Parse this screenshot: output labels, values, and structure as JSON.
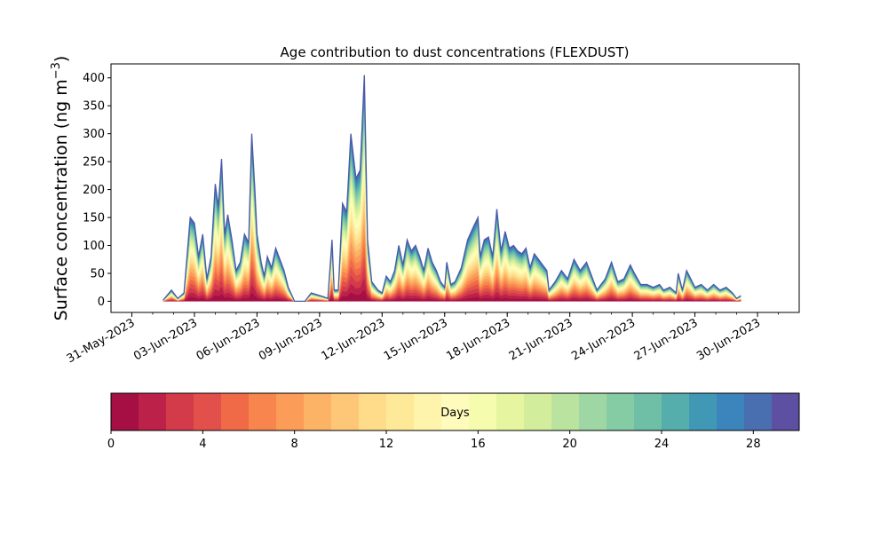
{
  "chart_data": {
    "type": "area",
    "title": "Age contribution to dust concentrations (FLEXDUST)",
    "ylabel_main": "Surface concentration (ng m",
    "ylabel_sup": "−3",
    "ylabel_close": ")",
    "xlabel": "",
    "ylim": [
      -20,
      425
    ],
    "x_axis": {
      "start_date": "2023-05-30",
      "end_date": "2023-07-02",
      "tick_labels": [
        "31-May-2023",
        "03-Jun-2023",
        "06-Jun-2023",
        "09-Jun-2023",
        "12-Jun-2023",
        "15-Jun-2023",
        "18-Jun-2023",
        "21-Jun-2023",
        "24-Jun-2023",
        "27-Jun-2023",
        "30-Jun-2023"
      ],
      "tick_days": [
        1,
        4,
        7,
        10,
        13,
        16,
        19,
        22,
        25,
        28,
        31
      ]
    },
    "y_ticks": [
      0,
      50,
      100,
      150,
      200,
      250,
      300,
      350,
      400
    ],
    "total_series": {
      "name": "total",
      "points": [
        [
          2.5,
          2
        ],
        [
          2.9,
          20
        ],
        [
          3.2,
          5
        ],
        [
          3.5,
          15
        ],
        [
          3.8,
          150
        ],
        [
          4.0,
          140
        ],
        [
          4.2,
          80
        ],
        [
          4.4,
          120
        ],
        [
          4.6,
          40
        ],
        [
          4.8,
          80
        ],
        [
          5.0,
          210
        ],
        [
          5.15,
          170
        ],
        [
          5.3,
          255
        ],
        [
          5.45,
          120
        ],
        [
          5.6,
          155
        ],
        [
          5.8,
          110
        ],
        [
          6.0,
          55
        ],
        [
          6.2,
          70
        ],
        [
          6.4,
          120
        ],
        [
          6.6,
          105
        ],
        [
          6.75,
          300
        ],
        [
          6.9,
          200
        ],
        [
          7.0,
          120
        ],
        [
          7.2,
          70
        ],
        [
          7.35,
          45
        ],
        [
          7.5,
          80
        ],
        [
          7.7,
          60
        ],
        [
          7.9,
          95
        ],
        [
          8.1,
          75
        ],
        [
          8.3,
          55
        ],
        [
          8.5,
          25
        ],
        [
          8.8,
          0
        ],
        [
          9.3,
          0
        ],
        [
          9.6,
          15
        ],
        [
          10.2,
          8
        ],
        [
          10.4,
          5
        ],
        [
          10.6,
          110
        ],
        [
          10.7,
          20
        ],
        [
          10.9,
          20
        ],
        [
          11.1,
          175
        ],
        [
          11.3,
          160
        ],
        [
          11.5,
          300
        ],
        [
          11.75,
          220
        ],
        [
          11.95,
          235
        ],
        [
          12.15,
          405
        ],
        [
          12.3,
          110
        ],
        [
          12.5,
          35
        ],
        [
          12.8,
          20
        ],
        [
          13.0,
          15
        ],
        [
          13.2,
          45
        ],
        [
          13.4,
          35
        ],
        [
          13.6,
          55
        ],
        [
          13.8,
          100
        ],
        [
          14.0,
          65
        ],
        [
          14.2,
          110
        ],
        [
          14.4,
          90
        ],
        [
          14.6,
          100
        ],
        [
          14.8,
          80
        ],
        [
          15.0,
          55
        ],
        [
          15.2,
          95
        ],
        [
          15.4,
          70
        ],
        [
          15.6,
          55
        ],
        [
          15.8,
          35
        ],
        [
          16.0,
          25
        ],
        [
          16.1,
          70
        ],
        [
          16.3,
          30
        ],
        [
          16.5,
          35
        ],
        [
          16.8,
          60
        ],
        [
          17.1,
          110
        ],
        [
          17.4,
          135
        ],
        [
          17.6,
          150
        ],
        [
          17.7,
          80
        ],
        [
          17.9,
          110
        ],
        [
          18.1,
          115
        ],
        [
          18.3,
          80
        ],
        [
          18.5,
          165
        ],
        [
          18.7,
          90
        ],
        [
          18.9,
          125
        ],
        [
          19.1,
          95
        ],
        [
          19.3,
          100
        ],
        [
          19.5,
          90
        ],
        [
          19.7,
          85
        ],
        [
          19.9,
          95
        ],
        [
          20.1,
          60
        ],
        [
          20.3,
          85
        ],
        [
          20.5,
          75
        ],
        [
          20.7,
          65
        ],
        [
          20.9,
          55
        ],
        [
          21.0,
          20
        ],
        [
          21.3,
          35
        ],
        [
          21.6,
          55
        ],
        [
          21.9,
          40
        ],
        [
          22.2,
          75
        ],
        [
          22.5,
          55
        ],
        [
          22.8,
          70
        ],
        [
          23.0,
          50
        ],
        [
          23.3,
          20
        ],
        [
          23.7,
          40
        ],
        [
          24.0,
          70
        ],
        [
          24.3,
          35
        ],
        [
          24.6,
          40
        ],
        [
          24.9,
          65
        ],
        [
          25.1,
          50
        ],
        [
          25.4,
          30
        ],
        [
          25.7,
          30
        ],
        [
          26.0,
          25
        ],
        [
          26.3,
          30
        ],
        [
          26.5,
          20
        ],
        [
          26.8,
          25
        ],
        [
          27.1,
          15
        ],
        [
          27.2,
          50
        ],
        [
          27.4,
          20
        ],
        [
          27.6,
          55
        ],
        [
          27.8,
          40
        ],
        [
          28.0,
          25
        ],
        [
          28.3,
          30
        ],
        [
          28.6,
          20
        ],
        [
          28.9,
          30
        ],
        [
          29.2,
          20
        ],
        [
          29.5,
          25
        ],
        [
          29.8,
          15
        ],
        [
          30.0,
          5
        ],
        [
          30.2,
          10
        ]
      ]
    },
    "colorbar": {
      "label": "Days",
      "range": [
        0,
        30
      ],
      "ticks": [
        0,
        4,
        8,
        12,
        16,
        20,
        24,
        28
      ],
      "colors": [
        "#a50f43",
        "#bb2149",
        "#d33b4b",
        "#e2504b",
        "#f06a48",
        "#f7854d",
        "#fb9c59",
        "#fdb365",
        "#fec778",
        "#fedc89",
        "#fee999",
        "#fff4ac",
        "#fffbbc",
        "#f6fcae",
        "#e5f5a0",
        "#d2ee9c",
        "#bae3a0",
        "#9ed7a4",
        "#85cca5",
        "#6ebfa6",
        "#56aeac",
        "#4198b5",
        "#3c84bc",
        "#4a6fb1",
        "#5d4fa1"
      ]
    }
  }
}
